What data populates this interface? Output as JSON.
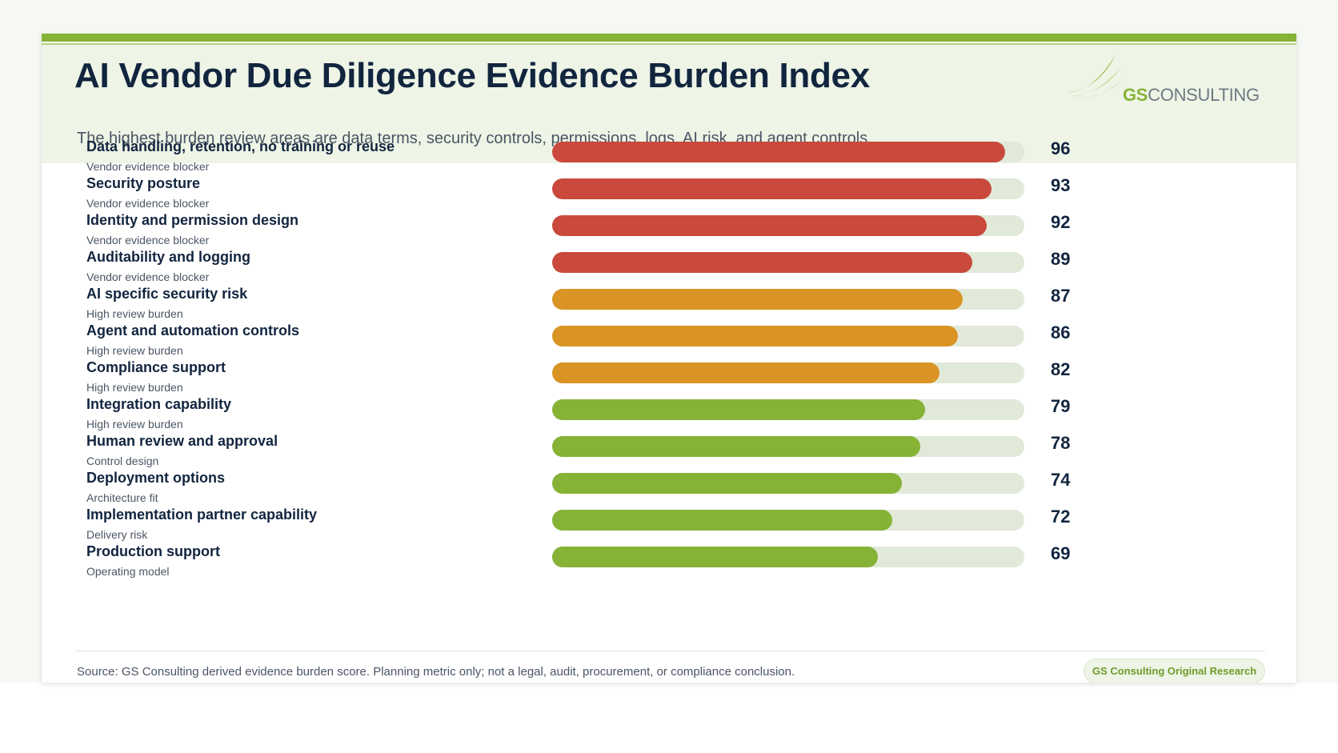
{
  "header": {
    "title": "AI Vendor Due Diligence Evidence Burden Index",
    "subtitle": "The highest burden review areas are data terms, security controls, permissions, logs, AI risk, and agent controls.",
    "logo": {
      "brand_bold": "GS",
      "brand_rest": "CONSULTING",
      "icon": "swoosh-icon"
    }
  },
  "colors": {
    "blocker": "#c9493c",
    "high": "#d99425",
    "other": "#86b236",
    "track": "#e1e9d9",
    "accent": "#86b236",
    "text": "#12253f"
  },
  "chart_data": {
    "type": "bar",
    "orientation": "horizontal",
    "title": "AI Vendor Due Diligence Evidence Burden Index",
    "subtitle": "The highest burden review areas are data terms, security controls, permissions, logs, AI risk, and agent controls.",
    "xlim": [
      0,
      100
    ],
    "categories": [
      "Data handling, retention, no training or reuse",
      "Security posture",
      "Identity and permission design",
      "Auditability and logging",
      "AI specific security risk",
      "Agent and automation controls",
      "Compliance support",
      "Integration capability",
      "Human review and approval",
      "Deployment options",
      "Implementation partner capability",
      "Production support"
    ],
    "subcategories": [
      "Vendor evidence blocker",
      "Vendor evidence blocker",
      "Vendor evidence blocker",
      "Vendor evidence blocker",
      "High review burden",
      "High review burden",
      "High review burden",
      "High review burden",
      "Control design",
      "Architecture fit",
      "Delivery risk",
      "Operating model"
    ],
    "values": [
      96,
      93,
      92,
      89,
      87,
      86,
      82,
      79,
      78,
      74,
      72,
      69
    ],
    "bar_colors": [
      "#c9493c",
      "#c9493c",
      "#c9493c",
      "#c9493c",
      "#d99425",
      "#d99425",
      "#d99425",
      "#86b236",
      "#86b236",
      "#86b236",
      "#86b236",
      "#86b236"
    ]
  },
  "footer": {
    "source": "Source: GS Consulting derived evidence burden score. Planning metric only; not a legal, audit, procurement, or compliance conclusion.",
    "badge": "GS Consulting Original Research"
  }
}
